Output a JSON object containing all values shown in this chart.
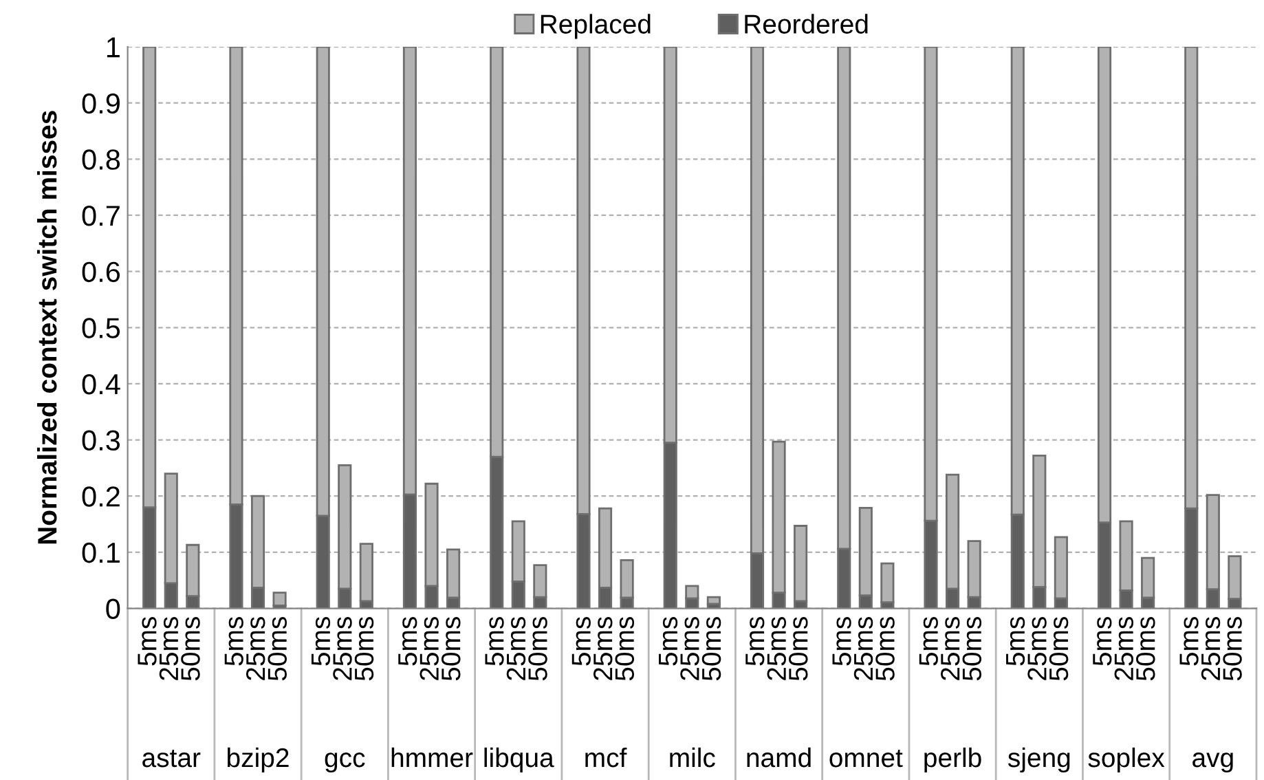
{
  "chart_data": {
    "type": "bar",
    "stacked": true,
    "ylabel": "Normalized context switch misses",
    "categories": [
      "5ms",
      "25ms",
      "50ms",
      null,
      "5ms",
      "25ms",
      "50ms",
      null,
      "5ms",
      "25ms",
      "50ms",
      null,
      "5ms",
      "25ms",
      "50ms",
      null,
      "5ms",
      "25ms",
      "50ms",
      null,
      "5ms",
      "25ms",
      "50ms",
      null,
      "5ms",
      "25ms",
      "50ms",
      null,
      "5ms",
      "25ms",
      "50ms",
      null,
      "5ms",
      "25ms",
      "50ms",
      null,
      "5ms",
      "25ms",
      "50ms",
      null,
      "5ms",
      "25ms",
      "50ms",
      null,
      "5ms",
      "25ms",
      "50ms",
      null,
      "5ms",
      "25ms",
      "50ms",
      null
    ],
    "series": [
      {
        "name": "Reordered",
        "color": "#5f5f5f",
        "values": [
          0.18,
          0.045,
          0.022,
          null,
          0.185,
          0.037,
          0.005,
          null,
          0.165,
          0.035,
          0.013,
          null,
          0.203,
          0.04,
          0.019,
          null,
          0.27,
          0.048,
          0.02,
          null,
          0.168,
          0.037,
          0.019,
          null,
          0.295,
          0.018,
          0.008,
          null,
          0.098,
          0.028,
          0.013,
          null,
          0.106,
          0.023,
          0.011,
          null,
          0.156,
          0.035,
          0.02,
          null,
          0.167,
          0.038,
          0.018,
          null,
          0.153,
          0.032,
          0.019,
          null,
          0.178,
          0.034,
          0.017,
          null
        ]
      },
      {
        "name": "Replaced",
        "color": "#b2b2b2",
        "values": [
          0.82,
          0.195,
          0.091,
          null,
          0.815,
          0.163,
          0.023,
          null,
          0.835,
          0.22,
          0.102,
          null,
          0.797,
          0.182,
          0.086,
          null,
          0.73,
          0.107,
          0.057,
          null,
          0.832,
          0.141,
          0.067,
          null,
          0.705,
          0.022,
          0.012,
          null,
          0.902,
          0.269,
          0.134,
          null,
          0.894,
          0.156,
          0.069,
          null,
          0.844,
          0.203,
          0.1,
          null,
          0.833,
          0.234,
          0.109,
          null,
          0.847,
          0.123,
          0.071,
          null,
          0.822,
          0.168,
          0.076,
          null
        ]
      }
    ],
    "annotations": [
      "astar",
      "bzip2",
      "gcc",
      "hmmer",
      "libqua",
      "mcf",
      "milc",
      "namd",
      "omnet",
      "perlb",
      "sjeng",
      "soplex",
      "avg"
    ],
    "ylim": [
      0,
      1
    ],
    "yticks": [
      0,
      0.1,
      0.2,
      0.3,
      0.4,
      0.5,
      0.6,
      0.7,
      0.8,
      0.9,
      1
    ],
    "grid": "y",
    "legend": "top"
  }
}
